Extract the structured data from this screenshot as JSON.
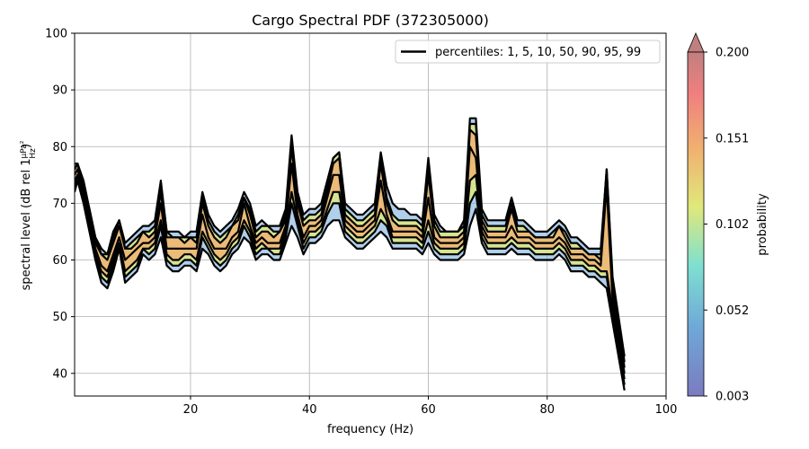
{
  "chart_data": {
    "type": "line",
    "title": "Cargo Spectral PDF (372305000)",
    "xlabel": "frequency (Hz)",
    "ylabel": "spectral level (dB rel 1",
    "ylabel_unit_num": "μPa²",
    "ylabel_unit_den": "Hz",
    "ylabel_close": ")",
    "xlim": [
      0.5,
      100
    ],
    "ylim": [
      36,
      100
    ],
    "xticks": [
      20,
      40,
      60,
      80,
      100
    ],
    "yticks": [
      40,
      50,
      60,
      70,
      80,
      90,
      100
    ],
    "grid": true,
    "legend": {
      "placement": "top-right",
      "label": "percentiles: 1, 5, 10, 50, 90, 95, 99"
    },
    "colorbar": {
      "label": "probability",
      "ticks": [
        "0.003",
        "0.052",
        "0.102",
        "0.151",
        "0.200"
      ],
      "min": 0.003,
      "max": 0.2,
      "extend": "max"
    },
    "x": [
      0.5,
      1,
      2,
      3,
      4,
      5,
      6,
      7,
      8,
      9,
      10,
      11,
      12,
      13,
      14,
      15,
      16,
      17,
      18,
      19,
      20,
      21,
      22,
      23,
      24,
      25,
      26,
      27,
      28,
      29,
      30,
      31,
      32,
      33,
      34,
      35,
      36,
      37,
      38,
      39,
      40,
      41,
      42,
      43,
      44,
      45,
      46,
      47,
      48,
      49,
      50,
      51,
      52,
      53,
      54,
      55,
      56,
      57,
      58,
      59,
      60,
      61,
      62,
      63,
      64,
      65,
      66,
      67,
      68,
      69,
      70,
      71,
      72,
      73,
      74,
      75,
      76,
      77,
      78,
      79,
      80,
      81,
      82,
      83,
      84,
      85,
      86,
      87,
      88,
      89,
      90,
      91,
      92,
      93
    ],
    "series": [
      {
        "percentile": 1,
        "values": [
          72,
          74,
          70,
          65,
          60,
          56,
          55,
          58,
          62,
          56,
          57,
          58,
          61,
          60,
          61,
          64,
          59,
          58,
          58,
          59,
          59,
          58,
          62,
          61,
          59,
          58,
          59,
          61,
          62,
          64,
          63,
          60,
          61,
          61,
          60,
          60,
          63,
          66,
          64,
          61,
          63,
          63,
          64,
          66,
          67,
          67,
          64,
          63,
          62,
          62,
          63,
          64,
          65,
          64,
          62,
          62,
          62,
          62,
          62,
          61,
          63,
          61,
          60,
          60,
          60,
          60,
          61,
          66,
          69,
          63,
          61,
          61,
          61,
          61,
          62,
          61,
          61,
          61,
          60,
          60,
          60,
          60,
          61,
          60,
          58,
          58,
          58,
          57,
          57,
          56,
          55,
          49,
          43,
          37
        ]
      },
      {
        "percentile": 5,
        "values": [
          73,
          75,
          71,
          66,
          61,
          57,
          56,
          59,
          63,
          57,
          58,
          59,
          62,
          61,
          62,
          66,
          60,
          59,
          59,
          60,
          60,
          59,
          64,
          62,
          60,
          59,
          60,
          62,
          63,
          66,
          64,
          61,
          62,
          62,
          61,
          61,
          64,
          70,
          66,
          62,
          64,
          64,
          65,
          68,
          70,
          70,
          65,
          64,
          63,
          63,
          64,
          65,
          67,
          66,
          63,
          63,
          63,
          63,
          63,
          62,
          65,
          62,
          61,
          61,
          61,
          61,
          62,
          70,
          72,
          64,
          62,
          62,
          62,
          62,
          63,
          62,
          62,
          62,
          61,
          61,
          61,
          61,
          62,
          61,
          59,
          59,
          59,
          58,
          58,
          57,
          57,
          50,
          44,
          38
        ]
      },
      {
        "percentile": 10,
        "values": [
          74,
          75,
          71,
          66,
          61,
          58,
          57,
          60,
          63,
          58,
          59,
          60,
          62,
          62,
          63,
          67,
          61,
          60,
          60,
          61,
          61,
          60,
          65,
          63,
          61,
          60,
          61,
          63,
          64,
          67,
          65,
          62,
          63,
          62,
          62,
          62,
          65,
          72,
          67,
          63,
          65,
          65,
          66,
          69,
          72,
          72,
          66,
          65,
          64,
          64,
          65,
          66,
          69,
          67,
          64,
          64,
          64,
          64,
          64,
          63,
          67,
          63,
          62,
          62,
          62,
          62,
          63,
          74,
          75,
          65,
          63,
          63,
          63,
          63,
          64,
          63,
          63,
          63,
          62,
          62,
          62,
          62,
          63,
          62,
          60,
          60,
          60,
          59,
          59,
          58,
          58,
          51,
          45,
          39
        ]
      },
      {
        "percentile": 50,
        "values": [
          75,
          76,
          72,
          67,
          62,
          59,
          58,
          61,
          64,
          60,
          61,
          62,
          63,
          63,
          64,
          70,
          62,
          62,
          62,
          62,
          62,
          62,
          68,
          64,
          62,
          62,
          62,
          64,
          65,
          70,
          66,
          63,
          64,
          63,
          63,
          63,
          66,
          77,
          68,
          64,
          66,
          66,
          67,
          71,
          75,
          75,
          67,
          66,
          65,
          65,
          66,
          67,
          74,
          68,
          65,
          65,
          65,
          65,
          65,
          64,
          71,
          64,
          63,
          63,
          63,
          63,
          64,
          80,
          78,
          66,
          64,
          64,
          64,
          64,
          66,
          64,
          64,
          64,
          63,
          63,
          63,
          63,
          64,
          63,
          61,
          61,
          61,
          60,
          60,
          59,
          73,
          53,
          46,
          40
        ]
      },
      {
        "percentile": 90,
        "values": [
          76,
          77,
          73,
          68,
          63,
          61,
          60,
          63,
          66,
          62,
          62,
          63,
          65,
          64,
          65,
          72,
          64,
          64,
          64,
          63,
          64,
          63,
          70,
          66,
          64,
          63,
          64,
          66,
          67,
          71,
          68,
          64,
          65,
          65,
          64,
          65,
          67,
          80,
          70,
          66,
          67,
          67,
          68,
          72,
          77,
          78,
          68,
          67,
          66,
          66,
          67,
          68,
          77,
          70,
          67,
          66,
          66,
          66,
          66,
          65,
          75,
          66,
          64,
          64,
          64,
          64,
          65,
          83,
          82,
          67,
          65,
          65,
          65,
          65,
          69,
          65,
          65,
          65,
          64,
          64,
          64,
          64,
          66,
          64,
          62,
          62,
          62,
          61,
          61,
          60,
          75,
          55,
          48,
          41
        ]
      },
      {
        "percentile": 95,
        "values": [
          76,
          77,
          73,
          69,
          64,
          61,
          61,
          64,
          67,
          62,
          63,
          64,
          65,
          65,
          66,
          73,
          65,
          64,
          64,
          64,
          64,
          64,
          71,
          67,
          65,
          64,
          65,
          66,
          68,
          71,
          69,
          65,
          66,
          66,
          65,
          65,
          68,
          81,
          71,
          67,
          68,
          68,
          69,
          73,
          78,
          79,
          69,
          68,
          67,
          67,
          68,
          69,
          78,
          71,
          68,
          67,
          67,
          67,
          67,
          66,
          77,
          67,
          65,
          65,
          65,
          65,
          66,
          84,
          84,
          68,
          66,
          66,
          66,
          66,
          70,
          66,
          66,
          65,
          64,
          64,
          64,
          65,
          66,
          65,
          63,
          63,
          62,
          61,
          61,
          61,
          76,
          56,
          49,
          42
        ]
      },
      {
        "percentile": 99,
        "values": [
          77,
          77,
          74,
          69,
          64,
          62,
          61,
          65,
          67,
          63,
          64,
          65,
          66,
          66,
          67,
          74,
          65,
          65,
          65,
          64,
          65,
          65,
          72,
          68,
          66,
          65,
          66,
          67,
          69,
          72,
          70,
          66,
          67,
          66,
          66,
          66,
          69,
          82,
          72,
          68,
          69,
          69,
          70,
          74,
          78,
          79,
          70,
          69,
          68,
          68,
          69,
          70,
          79,
          73,
          70,
          69,
          69,
          68,
          68,
          67,
          78,
          68,
          66,
          65,
          65,
          65,
          67,
          85,
          85,
          69,
          67,
          67,
          67,
          67,
          71,
          67,
          67,
          66,
          65,
          65,
          65,
          66,
          67,
          66,
          64,
          64,
          63,
          62,
          62,
          62,
          76,
          57,
          50,
          43
        ]
      }
    ]
  }
}
